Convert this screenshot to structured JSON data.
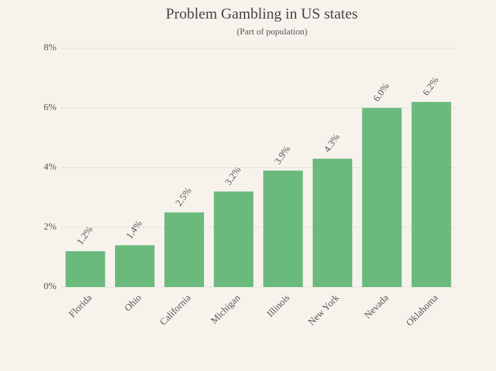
{
  "chart_data": {
    "type": "bar",
    "title": "Problem Gambling in US states",
    "subtitle": "(Part of population)",
    "categories": [
      "Florida",
      "Ohio",
      "California",
      "Michigan",
      "Illinois",
      "New York",
      "Nevada",
      "Oklahoma"
    ],
    "values": [
      1.2,
      1.4,
      2.5,
      3.2,
      3.9,
      4.3,
      6.0,
      6.2
    ],
    "value_labels": [
      "1.2%",
      "1.4%",
      "2.5%",
      "3.2%",
      "3.9%",
      "4.3%",
      "6.0%",
      "6.2%"
    ],
    "color": "#6aba7e",
    "ylim": [
      0,
      8
    ],
    "yticks": [
      {
        "value": 0,
        "label": "0%"
      },
      {
        "value": 2,
        "label": "2%"
      },
      {
        "value": 4,
        "label": "4%"
      },
      {
        "value": 6,
        "label": "6%"
      },
      {
        "value": 8,
        "label": "8%"
      }
    ],
    "grid": true
  }
}
